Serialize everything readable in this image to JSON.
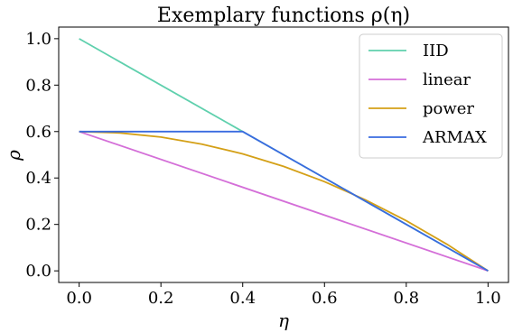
{
  "chart_data": {
    "type": "line",
    "title": "Exemplary functions ρ(η)",
    "xlabel": "η",
    "ylabel": "ρ",
    "xlim": [
      -0.05,
      1.05
    ],
    "ylim": [
      -0.05,
      1.05
    ],
    "xticks": [
      "0.0",
      "0.2",
      "0.4",
      "0.6",
      "0.8",
      "1.0"
    ],
    "yticks": [
      "0.0",
      "0.2",
      "0.4",
      "0.6",
      "0.8",
      "1.0"
    ],
    "grid": false,
    "legend_position": "top-right",
    "series": [
      {
        "name": "IID",
        "color": "#5fd0ad",
        "x": [
          0.0,
          1.0
        ],
        "y": [
          1.0,
          0.0
        ]
      },
      {
        "name": "linear",
        "color": "#d46fd8",
        "x": [
          0.0,
          1.0
        ],
        "y": [
          0.6,
          0.0
        ]
      },
      {
        "name": "power",
        "color": "#d4a017",
        "x": [
          0.0,
          0.1,
          0.2,
          0.3,
          0.4,
          0.5,
          0.6,
          0.7,
          0.8,
          0.9,
          1.0
        ],
        "y": [
          0.6,
          0.594,
          0.576,
          0.546,
          0.504,
          0.45,
          0.384,
          0.306,
          0.216,
          0.114,
          0.0
        ]
      },
      {
        "name": "ARMAX",
        "color": "#3a6be0",
        "x": [
          0.0,
          0.4,
          1.0
        ],
        "y": [
          0.6,
          0.6,
          0.0
        ]
      }
    ]
  }
}
